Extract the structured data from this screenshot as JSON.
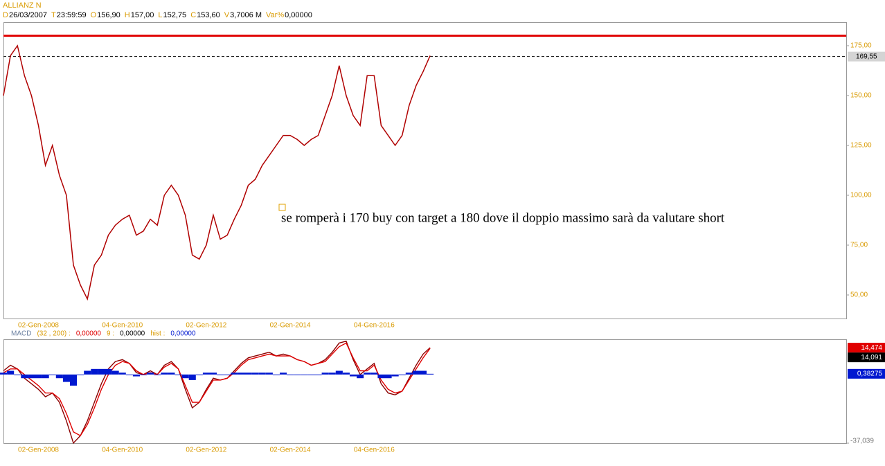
{
  "chart_data": [
    {
      "type": "line",
      "title": "ALLIANZ N",
      "header": [
        {
          "key": "D",
          "value": "26/03/2007"
        },
        {
          "key": "T",
          "value": "23:59:59"
        },
        {
          "key": "O",
          "value": "156,90"
        },
        {
          "key": "H",
          "value": "157,00"
        },
        {
          "key": "L",
          "value": "152,75"
        },
        {
          "key": "C",
          "value": "153,60"
        },
        {
          "key": "V",
          "value": "3,7006 M"
        },
        {
          "key": "Var%",
          "value": "0,00000"
        }
      ],
      "categories": [
        null,
        null,
        null,
        null,
        null,
        "02-Gen-2008",
        null,
        null,
        null,
        null,
        null,
        null,
        null,
        null,
        null,
        null,
        null,
        "04-Gen-2010",
        null,
        null,
        null,
        null,
        null,
        null,
        null,
        null,
        null,
        null,
        null,
        "02-Gen-2012",
        null,
        null,
        null,
        null,
        null,
        null,
        null,
        null,
        null,
        null,
        null,
        "02-Gen-2014",
        null,
        null,
        null,
        null,
        null,
        null,
        null,
        null,
        null,
        null,
        null,
        "04-Gen-2016",
        null,
        null,
        null,
        null,
        null,
        null,
        null,
        null
      ],
      "values": [
        150,
        170,
        175,
        160,
        150,
        135,
        115,
        125,
        110,
        100,
        65,
        55,
        48,
        65,
        70,
        80,
        85,
        88,
        90,
        80,
        82,
        88,
        85,
        100,
        105,
        100,
        90,
        70,
        68,
        75,
        90,
        78,
        80,
        88,
        95,
        105,
        108,
        115,
        120,
        125,
        130,
        130,
        128,
        125,
        128,
        130,
        140,
        150,
        165,
        150,
        140,
        135,
        160,
        160,
        135,
        130,
        125,
        130,
        145,
        155,
        162,
        170
      ],
      "color": "#b00000",
      "ylim": [
        38.2,
        186.8
      ],
      "yticks": [
        {
          "value": 50,
          "label": "50,00"
        },
        {
          "value": 75,
          "label": "75,00"
        },
        {
          "value": 100,
          "label": "100,00"
        },
        {
          "value": 125,
          "label": "125,00"
        },
        {
          "value": 150,
          "label": "150,00"
        },
        {
          "value": 175,
          "label": "175,00"
        }
      ],
      "levels": [
        {
          "value": 180,
          "color": "#e00000",
          "style": "solid"
        },
        {
          "value": 169.55,
          "label": "169,55",
          "color": "#000000",
          "style": "dashed"
        }
      ],
      "annotation": "se romperà i 170 buy con target a 180 dove il doppio massimo sarà da valutare short"
    },
    {
      "type": "macd",
      "legend": [
        "MACD",
        "(32 , 200) :",
        "0,00000",
        "9 :",
        "0,00000",
        "hist :",
        "0,00000"
      ],
      "ylim": [
        -37.039,
        19
      ],
      "yticks": [
        {
          "value": -37.039,
          "label": "-37,039"
        }
      ],
      "series": [
        {
          "style": "line",
          "color": "#8b0000",
          "box_color": "#e00000",
          "last_label": "14,474",
          "values": [
            2,
            5,
            3,
            -2,
            -5,
            -8,
            -12,
            -10,
            -15,
            -25,
            -37,
            -33,
            -25,
            -15,
            -5,
            3,
            7,
            8,
            6,
            1,
            0,
            2,
            0,
            5,
            7,
            3,
            -8,
            -18,
            -15,
            -8,
            -2,
            -3,
            -2,
            2,
            6,
            9,
            10,
            11,
            12,
            10,
            11,
            10,
            8,
            7,
            5,
            6,
            8,
            12,
            17,
            18,
            8,
            0,
            3,
            6,
            -5,
            -10,
            -11,
            -9,
            -2,
            5,
            11,
            14.474
          ]
        },
        {
          "style": "line",
          "color": "#e00000",
          "box_color": "#000000",
          "last_label": "14,091",
          "values": [
            1,
            3,
            3,
            0,
            -3,
            -6,
            -10,
            -10,
            -13,
            -21,
            -31,
            -33,
            -27,
            -18,
            -8,
            0,
            5,
            7,
            6,
            2,
            0,
            1,
            0,
            4,
            6,
            3,
            -6,
            -15,
            -15,
            -9,
            -3,
            -3,
            -2,
            1,
            5,
            8,
            9,
            10,
            11,
            10,
            10,
            10,
            8,
            7,
            5,
            6,
            7,
            11,
            15,
            17,
            9,
            2,
            2,
            5,
            -3,
            -8,
            -10,
            -9,
            -3,
            3,
            9,
            14.091
          ]
        },
        {
          "style": "bar",
          "color": "#0018d0",
          "box_color": "#0018d0",
          "last_label": "0,38275",
          "values": [
            1,
            2,
            0,
            -2,
            -2,
            -2,
            -2,
            0,
            -2,
            -4,
            -6,
            0,
            2,
            3,
            3,
            3,
            2,
            1,
            0,
            -1,
            0,
            1,
            0,
            1,
            1,
            0,
            -2,
            -3,
            0,
            1,
            1,
            0,
            0,
            1,
            1,
            1,
            1,
            1,
            1,
            0,
            1,
            0,
            0,
            0,
            0,
            0,
            1,
            1,
            2,
            1,
            -1,
            -2,
            1,
            1,
            -2,
            -2,
            -1,
            0,
            1,
            2,
            2,
            0.38275
          ]
        }
      ]
    }
  ]
}
